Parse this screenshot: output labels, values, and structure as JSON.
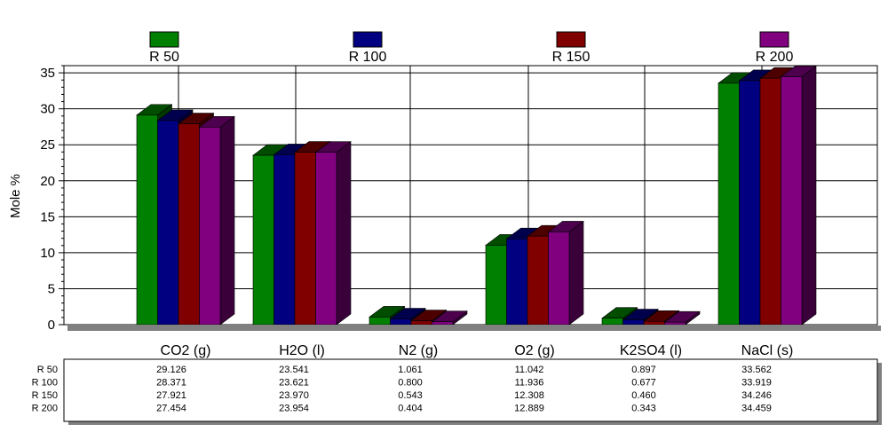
{
  "chart_data": {
    "type": "bar",
    "ylabel": "Mole %",
    "ylim": [
      0,
      36
    ],
    "yticks": [
      0,
      5,
      10,
      15,
      20,
      25,
      30,
      35
    ],
    "grid": true,
    "legend_position": "top",
    "categories": [
      "CO2 (g)",
      "H2O (l)",
      "N2 (g)",
      "O2 (g)",
      "K2SO4 (l)",
      "NaCl (s)"
    ],
    "series": [
      {
        "name": "R 50",
        "color": "#008000",
        "values": [
          29.126,
          23.541,
          1.061,
          11.042,
          0.897,
          33.562
        ],
        "labels": [
          "29.126",
          "23.541",
          "1.061",
          "11.042",
          "0.897",
          "33.562"
        ]
      },
      {
        "name": "R 100",
        "color": "#000080",
        "values": [
          28.371,
          23.621,
          0.8,
          11.936,
          0.677,
          33.919
        ],
        "labels": [
          "28.371",
          "23.621",
          "0.800",
          "11.936",
          "0.677",
          "33.919"
        ]
      },
      {
        "name": "R 150",
        "color": "#800000",
        "values": [
          27.921,
          23.97,
          0.543,
          12.308,
          0.46,
          34.246
        ],
        "labels": [
          "27.921",
          "23.970",
          "0.543",
          "12.308",
          "0.460",
          "34.246"
        ]
      },
      {
        "name": "R 200",
        "color": "#800080",
        "values": [
          27.454,
          23.954,
          0.404,
          12.889,
          0.343,
          34.459
        ],
        "labels": [
          "27.454",
          "23.954",
          "0.404",
          "12.889",
          "0.343",
          "34.459"
        ]
      }
    ]
  }
}
